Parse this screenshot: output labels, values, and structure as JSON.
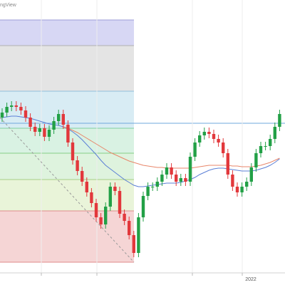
{
  "chart_data": {
    "type": "candlestick",
    "watermark": "ngView",
    "x_axis_labels": [
      "2022"
    ],
    "ylim": [
      17,
      400
    ],
    "up_color": "#22a046",
    "down_color": "#e2383c",
    "open": [
      235,
      242,
      250,
      252,
      250,
      245,
      235,
      222,
      215,
      220,
      208,
      218,
      230,
      240,
      225,
      200,
      175,
      160,
      145,
      130,
      115,
      95,
      85,
      110,
      138,
      132,
      100,
      90,
      70,
      45,
      95,
      125,
      138,
      138,
      145,
      155,
      165,
      155,
      145,
      150,
      145,
      180,
      200,
      210,
      215,
      212,
      205,
      200,
      185,
      155,
      138,
      130,
      138,
      145,
      165,
      185,
      195,
      195,
      205,
      222
    ],
    "high": [
      248,
      256,
      258,
      258,
      256,
      251,
      241,
      228,
      226,
      226,
      224,
      236,
      246,
      246,
      231,
      206,
      181,
      166,
      151,
      136,
      121,
      101,
      116,
      144,
      144,
      138,
      106,
      96,
      76,
      101,
      131,
      144,
      144,
      151,
      161,
      171,
      171,
      161,
      156,
      156,
      186,
      206,
      216,
      221,
      221,
      218,
      211,
      206,
      191,
      161,
      144,
      144,
      151,
      171,
      191,
      201,
      201,
      211,
      228,
      246
    ],
    "low": [
      229,
      236,
      244,
      244,
      239,
      229,
      216,
      209,
      209,
      202,
      202,
      212,
      224,
      219,
      194,
      169,
      154,
      139,
      124,
      109,
      89,
      79,
      79,
      104,
      126,
      94,
      84,
      64,
      39,
      39,
      89,
      119,
      132,
      132,
      139,
      149,
      149,
      139,
      139,
      139,
      139,
      174,
      194,
      204,
      206,
      199,
      194,
      179,
      149,
      132,
      124,
      124,
      132,
      139,
      159,
      179,
      189,
      189,
      199,
      216
    ],
    "close": [
      242,
      250,
      252,
      250,
      245,
      235,
      222,
      215,
      220,
      208,
      218,
      230,
      240,
      225,
      200,
      175,
      160,
      145,
      130,
      115,
      95,
      85,
      110,
      138,
      132,
      100,
      90,
      70,
      45,
      95,
      125,
      138,
      138,
      145,
      155,
      165,
      155,
      145,
      150,
      145,
      180,
      200,
      210,
      215,
      212,
      205,
      200,
      185,
      155,
      138,
      130,
      138,
      145,
      165,
      185,
      195,
      195,
      205,
      222,
      240
    ],
    "ma": [
      {
        "color": "#5b7fd6",
        "values": [
          235,
          236,
          237,
          237,
          236,
          235,
          234,
          232,
          230,
          228,
          226,
          225,
          224,
          222,
          219,
          215,
          210,
          204,
          197,
          190,
          183,
          175,
          168,
          163,
          158,
          153,
          148,
          144,
          140,
          138,
          138,
          139,
          140,
          141,
          142,
          143,
          143,
          143,
          144,
          146,
          148,
          151,
          155,
          158,
          161,
          163,
          164,
          164,
          163,
          162,
          161,
          160,
          160,
          160,
          161,
          163,
          165,
          168,
          172,
          177
        ]
      },
      {
        "color": "#e8866a",
        "values": [
          null,
          null,
          null,
          null,
          null,
          null,
          null,
          null,
          null,
          null,
          null,
          null,
          null,
          222,
          220,
          217,
          214,
          210,
          206,
          202,
          198,
          194,
          190,
          186,
          183,
          180,
          177,
          174,
          172,
          170,
          168,
          167,
          166,
          165,
          165,
          164,
          164,
          164,
          164,
          164,
          164,
          165,
          166,
          167,
          168,
          168,
          168,
          168,
          168,
          167,
          167,
          166,
          166,
          166,
          167,
          168,
          170,
          172,
          175,
          178
        ]
      }
    ],
    "fib_levels": [
      372,
      336,
      272,
      220,
      185,
      148,
      104,
      32
    ],
    "fib_colors": [
      "#d7d7f4",
      "#e4e4e4",
      "#d8ecf4",
      "#d9f2e3",
      "#def3de",
      "#e9f4d9",
      "#f5d5d5"
    ],
    "fib_line_colors": [
      "#9c9cd8",
      "#b0b0b0",
      "#8fc0dc",
      "#7fcf9f",
      "#86cf86",
      "#a8cf86",
      "#e08c8c"
    ],
    "hline": 227,
    "hline_color": "#6fa8dc"
  }
}
